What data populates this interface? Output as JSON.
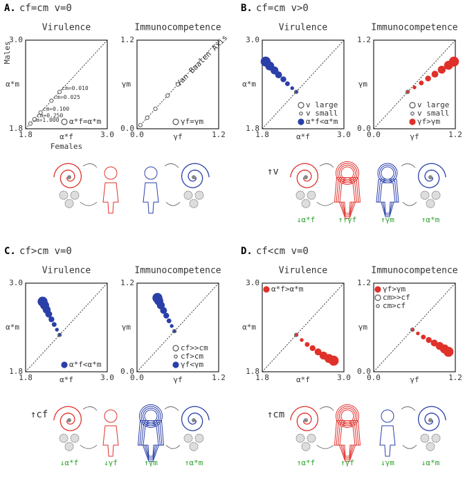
{
  "panels": [
    {
      "label": "A.",
      "condition": "cf=cm  v=0",
      "trigger": null,
      "effects": []
    },
    {
      "label": "B.",
      "condition": "cf=cm  v>0",
      "trigger": "↑v",
      "effects": [
        "↓α*f",
        "↑↑γf",
        "↑γm",
        "↑α*m"
      ]
    },
    {
      "label": "C.",
      "condition": "cf>cm  v=0",
      "trigger": "↑cf",
      "effects": [
        "↓α*f",
        "↓γf",
        "↑γm",
        "↑α*m"
      ]
    },
    {
      "label": "D.",
      "condition": "cf<cm  v=0",
      "trigger": "↑cm",
      "effects": [
        "↑α*f",
        "↑γf",
        "↓γm",
        "↓α*m"
      ]
    }
  ],
  "chart_data": [
    {
      "type": "scatter",
      "title": "Virulence",
      "xlabel": "α*f",
      "ylabel": "α*m",
      "col_label": "Females",
      "row_label": "Males",
      "xlim": [
        1.8,
        3.0
      ],
      "ylim": [
        1.8,
        3.0
      ],
      "xticks": [
        {
          "value": 1.8,
          "label": "1.8"
        },
        {
          "value": 3.0,
          "label": "3.0"
        }
      ],
      "yticks": [
        {
          "value": 1.8,
          "label": "1.8"
        },
        {
          "value": 3.0,
          "label": "3.0"
        }
      ],
      "diagonal": true,
      "legend_position": "lower right",
      "legend": [
        {
          "label": "α*f=α*m",
          "style": "open"
        }
      ],
      "series": [
        {
          "color": "#555",
          "filled": false,
          "x": [
            1.87,
            1.93,
            2.02,
            2.18,
            2.3
          ],
          "y": [
            1.87,
            1.93,
            2.02,
            2.18,
            2.3
          ],
          "point_labels": [
            "cm=1.000",
            "cm=0.250",
            "cm=0.100",
            "cm=0.025",
            "cm=0.010"
          ]
        }
      ]
    },
    {
      "type": "scatter",
      "title": "Immunocompetence",
      "xlabel": "γf",
      "ylabel": "γm",
      "annotation": "Van Baalen Axis",
      "xlim": [
        0,
        1.2
      ],
      "ylim": [
        0,
        1.2
      ],
      "xticks": [
        {
          "value": 0,
          "label": "0.0"
        },
        {
          "value": 1.2,
          "label": "1.2"
        }
      ],
      "yticks": [
        {
          "value": 0,
          "label": "0.0"
        },
        {
          "value": 1.2,
          "label": "1.2"
        }
      ],
      "diagonal": true,
      "legend_position": "lower right",
      "legend": [
        {
          "label": "γf=γm",
          "style": "open"
        }
      ],
      "series": [
        {
          "color": "#555",
          "filled": false,
          "x": [
            0.05,
            0.15,
            0.27,
            0.45,
            0.6
          ],
          "y": [
            0.05,
            0.15,
            0.27,
            0.45,
            0.6
          ]
        }
      ]
    },
    {
      "type": "scatter",
      "title": "Virulence",
      "xlabel": "α*f",
      "ylabel": "α*m",
      "xlim": [
        1.8,
        3.0
      ],
      "ylim": [
        1.8,
        3.0
      ],
      "xticks": [
        {
          "value": 1.8,
          "label": "1.8"
        },
        {
          "value": 3.0,
          "label": "3.0"
        }
      ],
      "yticks": [
        {
          "value": 1.8,
          "label": "1.8"
        },
        {
          "value": 3.0,
          "label": "3.0"
        }
      ],
      "diagonal": true,
      "legend_position": "lower right",
      "legend": [
        {
          "label": "v large",
          "style": "open"
        },
        {
          "label": "v small",
          "style": "open-small"
        },
        {
          "label": "α*f<α*m",
          "style": "filled",
          "color": "#2a3fa8"
        }
      ],
      "series": [
        {
          "color": "#555",
          "filled": false,
          "x": [
            2.3
          ],
          "y": [
            2.3
          ]
        },
        {
          "color": "#2a3fa8",
          "filled": true,
          "x": [
            2.3,
            2.24,
            2.17,
            2.11,
            2.04,
            1.98,
            1.91,
            1.85
          ],
          "y": [
            2.3,
            2.35,
            2.41,
            2.47,
            2.53,
            2.59,
            2.65,
            2.71
          ],
          "sizes": [
            1,
            2,
            3,
            4,
            5,
            6,
            7,
            8
          ]
        }
      ]
    },
    {
      "type": "scatter",
      "title": "Immunocompetence",
      "xlabel": "γf",
      "ylabel": "γm",
      "xlim": [
        0,
        1.2
      ],
      "ylim": [
        0,
        1.2
      ],
      "xticks": [
        {
          "value": 0,
          "label": "0.0"
        },
        {
          "value": 1.2,
          "label": "1.2"
        }
      ],
      "yticks": [
        {
          "value": 0,
          "label": "0.0"
        },
        {
          "value": 1.2,
          "label": "1.2"
        }
      ],
      "diagonal": true,
      "legend_position": "lower right",
      "legend": [
        {
          "label": "v large",
          "style": "open"
        },
        {
          "label": "v small",
          "style": "open-small"
        },
        {
          "label": "γf>γm",
          "style": "filled",
          "color": "#e0302a"
        }
      ],
      "series": [
        {
          "color": "#555",
          "filled": false,
          "x": [
            0.5
          ],
          "y": [
            0.5
          ]
        },
        {
          "color": "#e0302a",
          "filled": true,
          "x": [
            0.5,
            0.6,
            0.7,
            0.8,
            0.9,
            1.0,
            1.1,
            1.18
          ],
          "y": [
            0.5,
            0.56,
            0.62,
            0.68,
            0.74,
            0.8,
            0.86,
            0.91
          ],
          "sizes": [
            1,
            2,
            3,
            4,
            5,
            6,
            7,
            8
          ]
        }
      ]
    },
    {
      "type": "scatter",
      "title": "Virulence",
      "xlabel": "α*f",
      "ylabel": "α*m",
      "xlim": [
        1.8,
        3.0
      ],
      "ylim": [
        1.8,
        3.0
      ],
      "xticks": [
        {
          "value": 1.8,
          "label": "1.8"
        },
        {
          "value": 3.0,
          "label": "3.0"
        }
      ],
      "yticks": [
        {
          "value": 1.8,
          "label": "1.8"
        },
        {
          "value": 3.0,
          "label": "3.0"
        }
      ],
      "diagonal": true,
      "legend_position": "lower right",
      "legend": [
        {
          "label": "α*f<α*m",
          "style": "filled",
          "color": "#2a3fa8"
        }
      ],
      "series": [
        {
          "color": "#555",
          "filled": false,
          "x": [
            2.3
          ],
          "y": [
            2.3
          ]
        },
        {
          "color": "#2a3fa8",
          "filled": true,
          "x": [
            2.3,
            2.26,
            2.22,
            2.18,
            2.14,
            2.11,
            2.08,
            2.05
          ],
          "y": [
            2.3,
            2.37,
            2.44,
            2.51,
            2.58,
            2.64,
            2.7,
            2.75
          ],
          "sizes": [
            1,
            2,
            3,
            4,
            5,
            6,
            7,
            8
          ]
        }
      ]
    },
    {
      "type": "scatter",
      "title": "Immunocompetence",
      "xlabel": "γf",
      "ylabel": "γm",
      "xlim": [
        0,
        1.2
      ],
      "ylim": [
        0,
        1.2
      ],
      "xticks": [
        {
          "value": 0,
          "label": "0.0"
        },
        {
          "value": 1.2,
          "label": "1.2"
        }
      ],
      "yticks": [
        {
          "value": 0,
          "label": "0.0"
        },
        {
          "value": 1.2,
          "label": "1.2"
        }
      ],
      "diagonal": true,
      "legend_position": "lower right",
      "legend": [
        {
          "label": "cf>>cm",
          "style": "open"
        },
        {
          "label": "cf>cm",
          "style": "open-small"
        },
        {
          "label": "γf<γm",
          "style": "filled",
          "color": "#2a3fa8"
        }
      ],
      "series": [
        {
          "color": "#555",
          "filled": false,
          "x": [
            0.55
          ],
          "y": [
            0.55
          ]
        },
        {
          "color": "#2a3fa8",
          "filled": true,
          "x": [
            0.55,
            0.51,
            0.47,
            0.43,
            0.39,
            0.35,
            0.32,
            0.3
          ],
          "y": [
            0.55,
            0.62,
            0.69,
            0.76,
            0.83,
            0.9,
            0.96,
            1.0
          ],
          "sizes": [
            1,
            2,
            3,
            4,
            5,
            6,
            7,
            8
          ]
        }
      ]
    },
    {
      "type": "scatter",
      "title": "Virulence",
      "xlabel": "α*f",
      "ylabel": "α*m",
      "xlim": [
        1.8,
        3.0
      ],
      "ylim": [
        1.8,
        3.0
      ],
      "xticks": [
        {
          "value": 1.8,
          "label": "1.8"
        },
        {
          "value": 3.0,
          "label": "3.0"
        }
      ],
      "yticks": [
        {
          "value": 1.8,
          "label": "1.8"
        },
        {
          "value": 3.0,
          "label": "3.0"
        }
      ],
      "diagonal": true,
      "legend_position": "upper left",
      "legend": [
        {
          "label": "α*f>α*m",
          "style": "filled",
          "color": "#e0302a"
        }
      ],
      "series": [
        {
          "color": "#555",
          "filled": false,
          "x": [
            2.3
          ],
          "y": [
            2.3
          ]
        },
        {
          "color": "#e0302a",
          "filled": true,
          "x": [
            2.3,
            2.38,
            2.46,
            2.54,
            2.62,
            2.7,
            2.78,
            2.85
          ],
          "y": [
            2.3,
            2.23,
            2.17,
            2.12,
            2.07,
            2.02,
            1.98,
            1.95
          ],
          "sizes": [
            1,
            2,
            3,
            4,
            5,
            6,
            7,
            8
          ]
        }
      ]
    },
    {
      "type": "scatter",
      "title": "Immunocompetence",
      "xlabel": "γf",
      "ylabel": "γm",
      "xlim": [
        0,
        1.2
      ],
      "ylim": [
        0,
        1.2
      ],
      "xticks": [
        {
          "value": 0,
          "label": "0.0"
        },
        {
          "value": 1.2,
          "label": "1.2"
        }
      ],
      "yticks": [
        {
          "value": 0,
          "label": "0.0"
        },
        {
          "value": 1.2,
          "label": "1.2"
        }
      ],
      "diagonal": true,
      "legend_position": "upper left",
      "legend": [
        {
          "label": "γf>γm",
          "style": "filled",
          "color": "#e0302a"
        },
        {
          "label": "cm>>cf",
          "style": "open"
        },
        {
          "label": "cm>cf",
          "style": "open-small"
        }
      ],
      "series": [
        {
          "color": "#555",
          "filled": false,
          "x": [
            0.57
          ],
          "y": [
            0.57
          ]
        },
        {
          "color": "#e0302a",
          "filled": true,
          "x": [
            0.57,
            0.65,
            0.73,
            0.81,
            0.89,
            0.97,
            1.04,
            1.1
          ],
          "y": [
            0.57,
            0.52,
            0.47,
            0.43,
            0.39,
            0.35,
            0.31,
            0.27
          ],
          "sizes": [
            1,
            2,
            3,
            4,
            5,
            6,
            7,
            8
          ]
        }
      ]
    }
  ]
}
